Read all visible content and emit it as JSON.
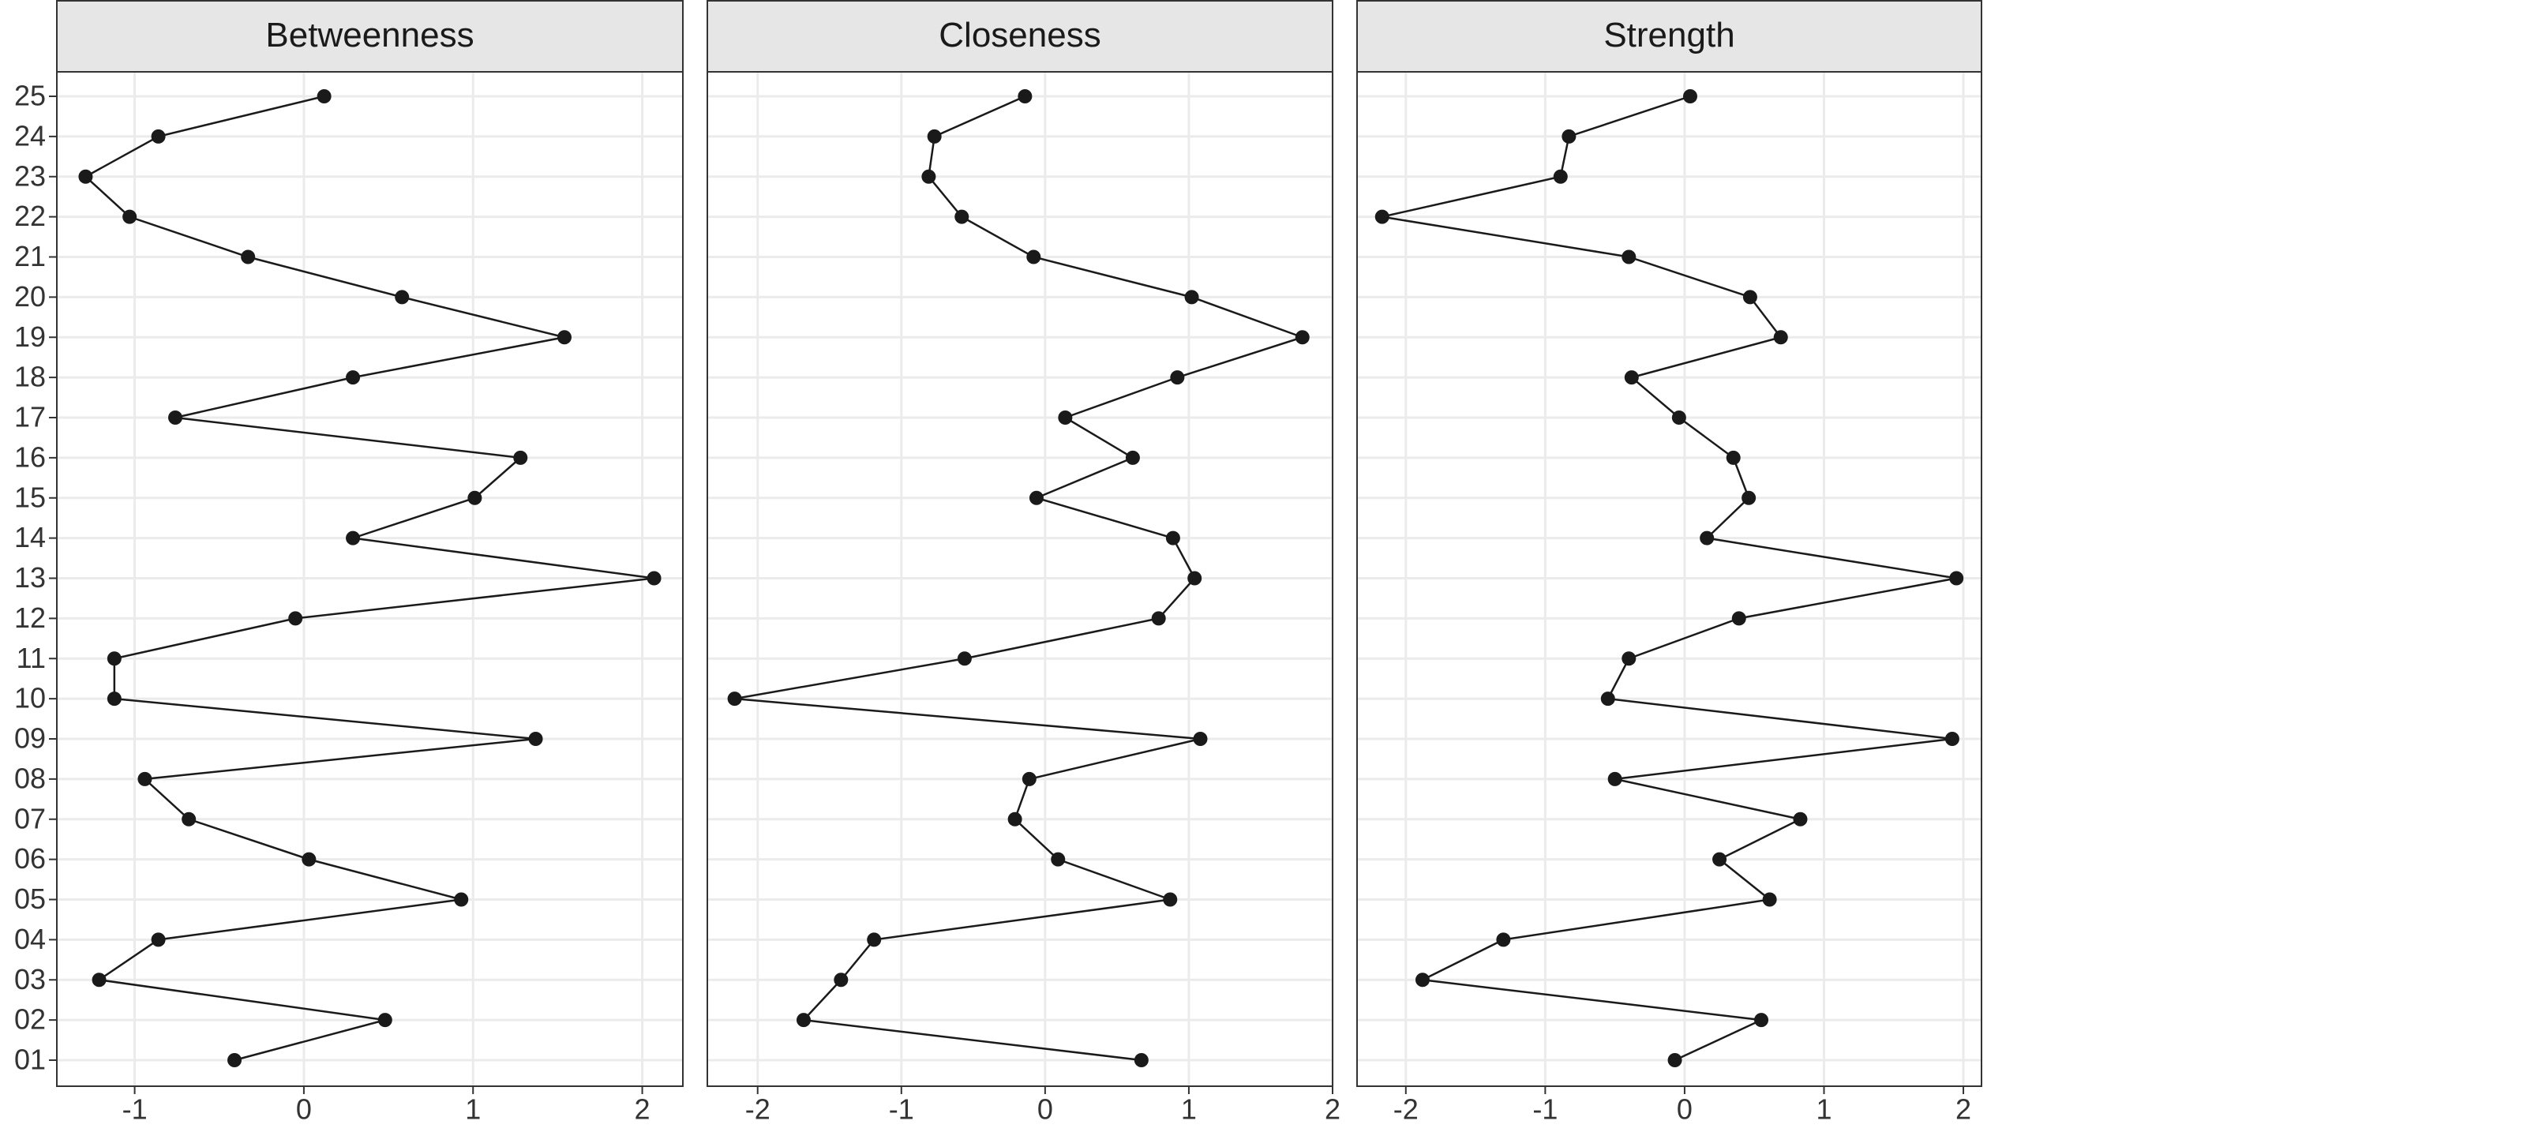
{
  "chart_data": [
    {
      "type": "line",
      "title": "Betweenness",
      "color": "#1a1a1a",
      "grid": true,
      "categories": [
        "01",
        "02",
        "03",
        "04",
        "05",
        "06",
        "07",
        "08",
        "09",
        "10",
        "11",
        "12",
        "13",
        "14",
        "15",
        "16",
        "17",
        "18",
        "19",
        "20",
        "21",
        "22",
        "23",
        "24",
        "25"
      ],
      "values": [
        -0.41,
        0.48,
        -1.21,
        -0.86,
        0.93,
        0.03,
        -0.68,
        -0.94,
        1.37,
        -1.12,
        -1.12,
        -0.05,
        2.07,
        0.29,
        1.01,
        1.28,
        -0.76,
        0.29,
        1.54,
        0.58,
        -0.33,
        -1.03,
        -1.29,
        -0.86,
        0.12
      ],
      "xlim": [
        -1.46,
        2.24
      ],
      "xticks": [
        -1,
        0,
        1,
        2
      ]
    },
    {
      "type": "line",
      "title": "Closeness",
      "color": "#1a1a1a",
      "grid": true,
      "values": [
        0.67,
        -1.68,
        -1.42,
        -1.19,
        0.87,
        0.09,
        -0.21,
        -0.11,
        1.08,
        -2.16,
        -0.56,
        0.79,
        1.04,
        0.89,
        -0.06,
        0.61,
        0.14,
        0.92,
        1.79,
        1.02,
        -0.08,
        -0.58,
        -0.81,
        -0.77,
        -0.14
      ],
      "xlim": [
        -2.35,
        2.0
      ],
      "xticks": [
        -2,
        -1,
        0,
        1,
        2
      ]
    },
    {
      "type": "line",
      "title": "Strength",
      "color": "#1a1a1a",
      "grid": true,
      "values": [
        -0.07,
        0.55,
        -1.88,
        -1.3,
        0.61,
        0.25,
        0.83,
        -0.5,
        1.92,
        -0.55,
        -0.4,
        0.39,
        1.95,
        0.16,
        0.46,
        0.35,
        -0.04,
        -0.38,
        0.69,
        0.47,
        -0.4,
        -2.17,
        -0.89,
        -0.83,
        0.04
      ],
      "xlim": [
        -2.35,
        2.13
      ],
      "xticks": [
        -2,
        -1,
        0,
        1,
        2
      ]
    }
  ]
}
